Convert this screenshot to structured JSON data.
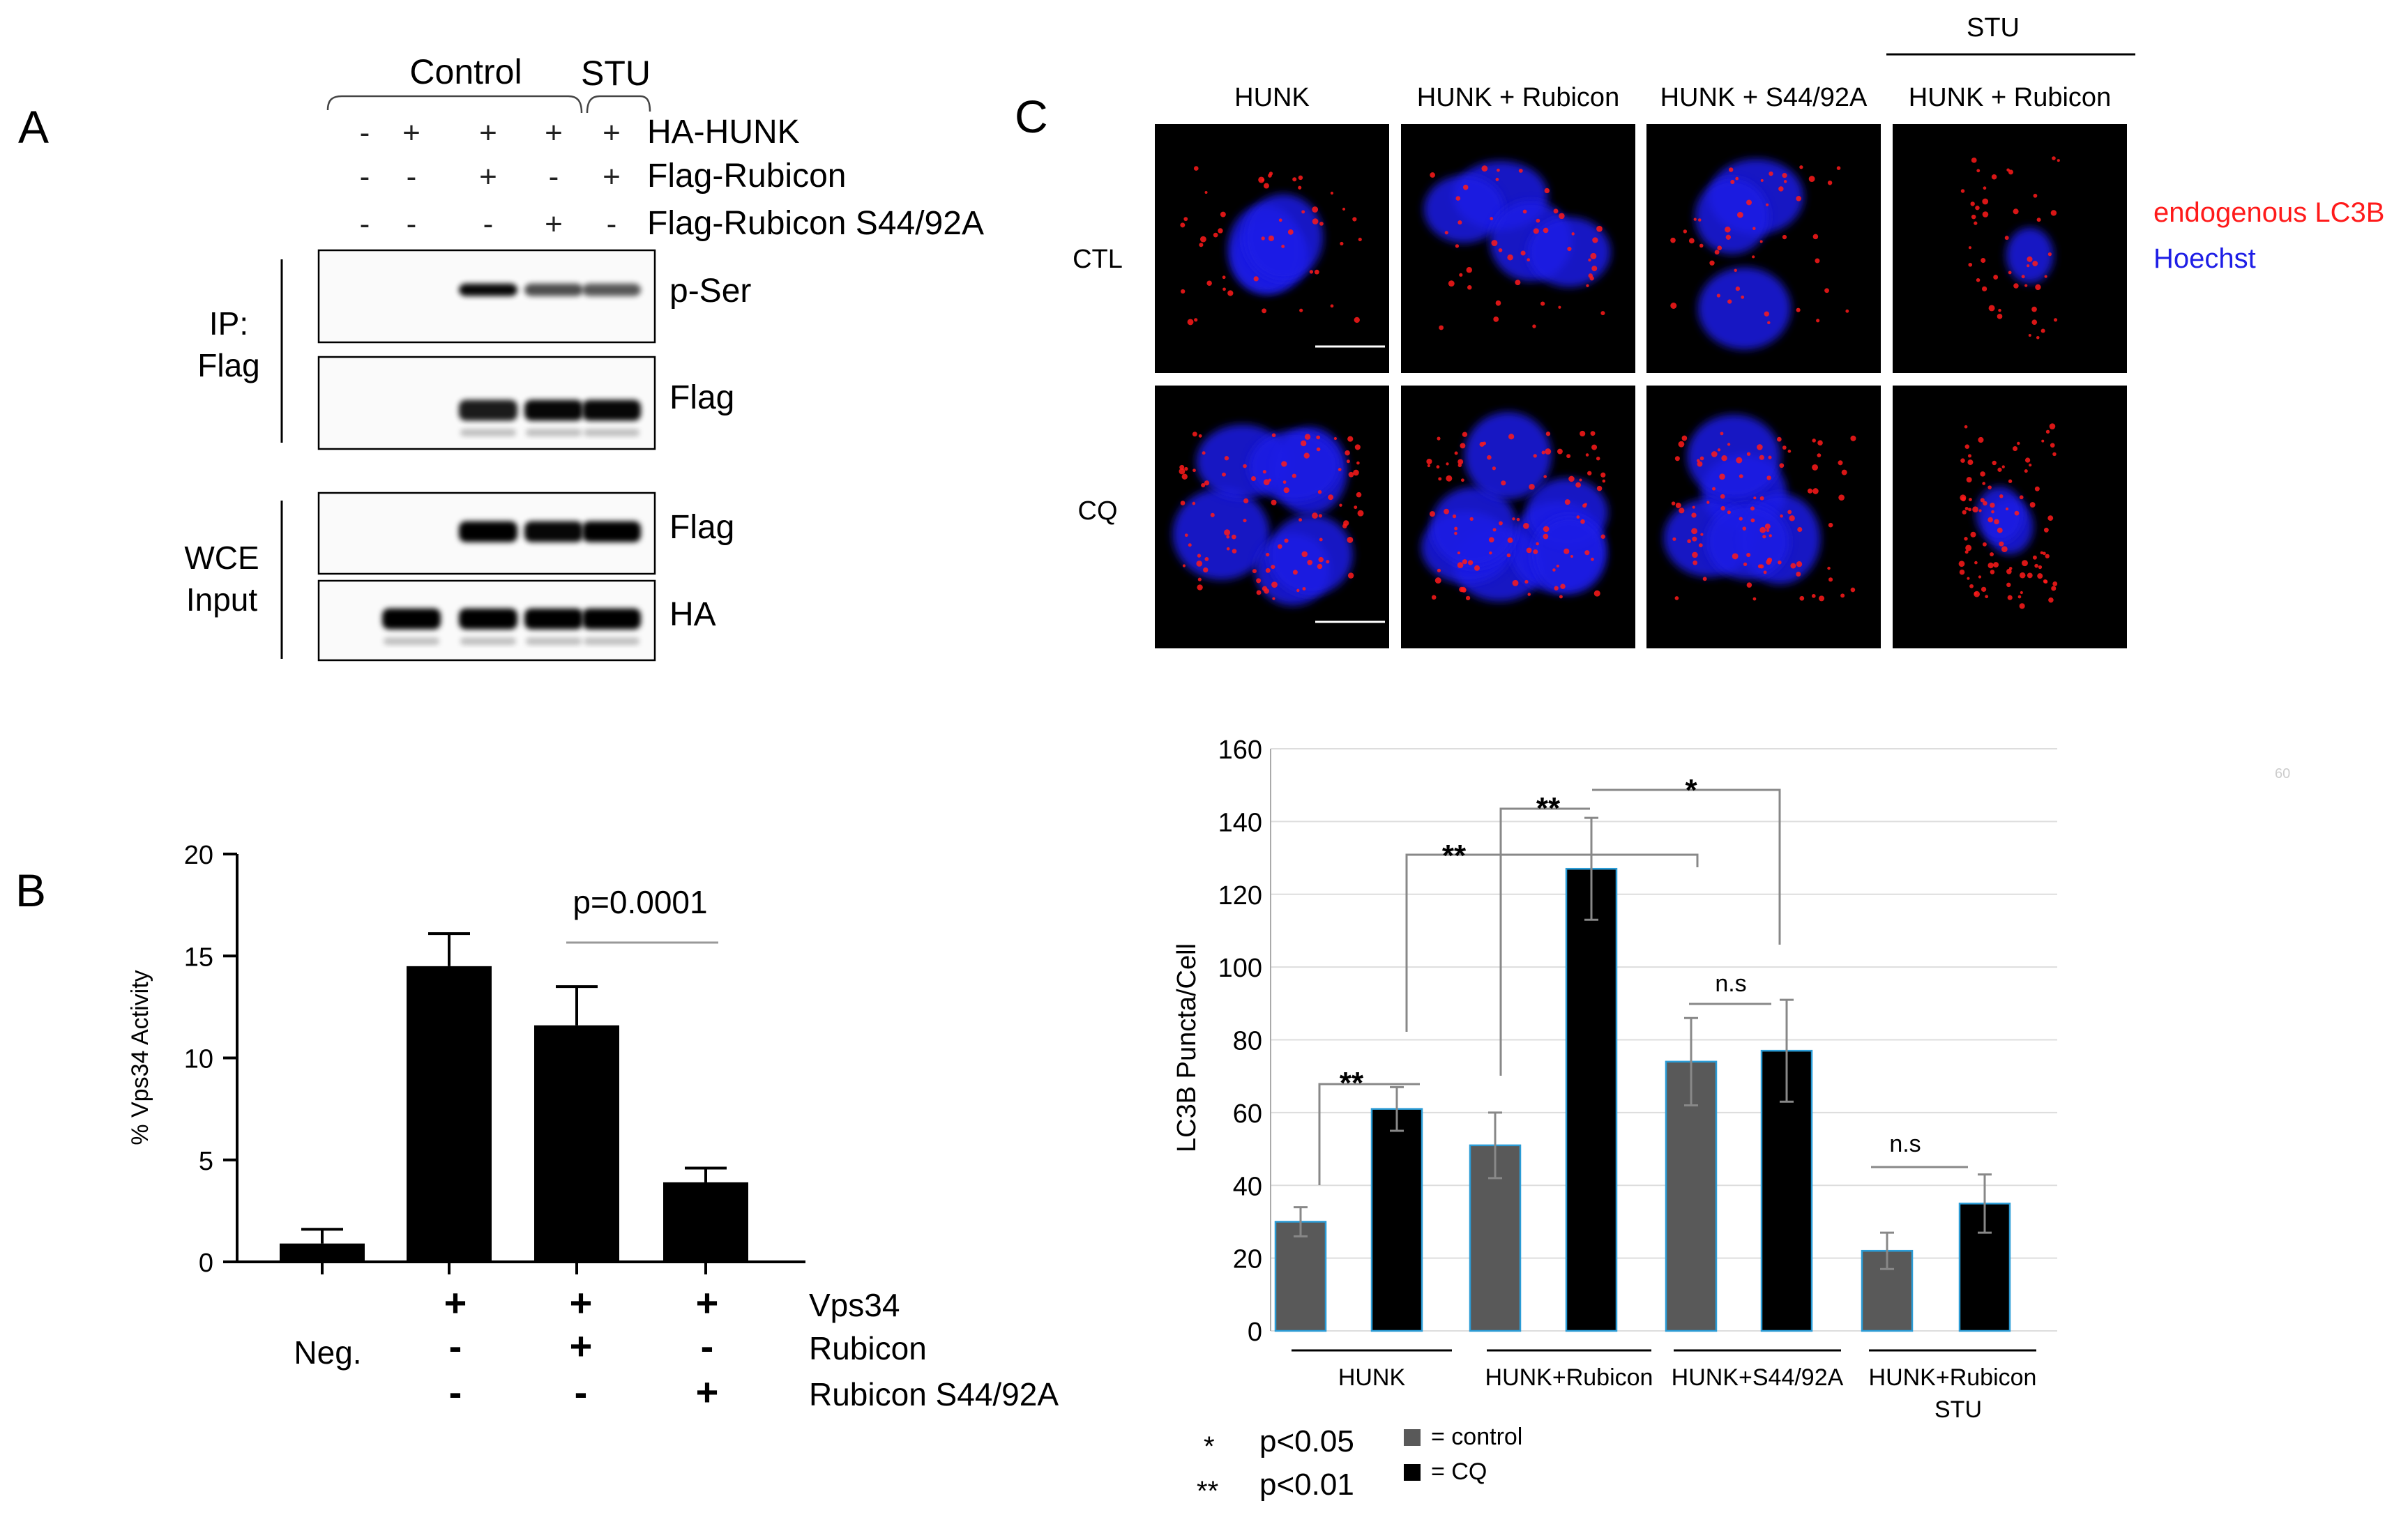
{
  "panelA": {
    "letter": "A",
    "group_labels": [
      "Control",
      "STU"
    ],
    "rows": [
      {
        "label": "HA-HUNK",
        "signs": [
          "-",
          "+",
          "+",
          "+",
          "+"
        ]
      },
      {
        "label": "Flag-Rubicon",
        "signs": [
          "-",
          "-",
          "+",
          "-",
          "+"
        ]
      },
      {
        "label": "Flag-Rubicon S44/92A",
        "signs": [
          "-",
          "-",
          "-",
          "+",
          "-"
        ]
      }
    ],
    "ip_label_line1": "IP:",
    "ip_label_line2": "Flag",
    "wce_label_line1": "WCE",
    "wce_label_line2": "Input",
    "blots": [
      {
        "label": "p-Ser",
        "bands": [
          0,
          0,
          0.9,
          0.55,
          0.5
        ]
      },
      {
        "label": "Flag",
        "bands": [
          0,
          0,
          0.8,
          0.9,
          0.9
        ]
      },
      {
        "label": "Flag",
        "bands": [
          0,
          0,
          1.0,
          0.9,
          0.95
        ]
      },
      {
        "label": "HA",
        "bands": [
          0,
          1.0,
          1.0,
          1.0,
          1.0
        ]
      }
    ]
  },
  "panelB": {
    "letter": "B",
    "annotation": "p=0.0001",
    "chart_data": {
      "type": "bar",
      "ylabel": "% Vps34 Activity",
      "ylim": [
        0,
        20
      ],
      "yticks": [
        "0",
        "5",
        "10",
        "15",
        "20"
      ],
      "values": [
        0.9,
        14.5,
        11.6,
        3.9
      ],
      "errors": [
        0.7,
        1.6,
        1.9,
        0.7
      ],
      "conditions": [
        {
          "label": "Vps34",
          "signs": [
            "",
            "+",
            "+",
            "+"
          ]
        },
        {
          "label": "Rubicon",
          "signs": [
            "Neg.",
            "-",
            "+",
            "-"
          ]
        },
        {
          "label": "Rubicon S44/92A",
          "signs": [
            "",
            "-",
            "-",
            "+"
          ]
        }
      ]
    }
  },
  "panelC": {
    "letter": "C",
    "stu_header": "STU",
    "column_labels": [
      "HUNK",
      "HUNK + Rubicon",
      "HUNK + S44/92A",
      "HUNK + Rubicon"
    ],
    "row_labels": [
      "CTL",
      "CQ"
    ],
    "legend_stain_1": "endogenous LC3B",
    "legend_stain_2": "Hoechst",
    "stain_colors": {
      "lc3b": "#ff1a1a",
      "hoechst": "#1e1ee6"
    },
    "corner_mark": "60",
    "chart_data": {
      "type": "bar",
      "ylabel": "LC3B Puncta/Cell",
      "ylim": [
        0,
        160
      ],
      "yticks": [
        "0",
        "20",
        "40",
        "60",
        "80",
        "100",
        "120",
        "140",
        "160"
      ],
      "groups": [
        "HUNK",
        "HUNK+Rubicon",
        "HUNK+S44/92A",
        "HUNK+Rubicon"
      ],
      "group_sublabels": [
        "",
        "",
        "",
        "STU"
      ],
      "series": [
        {
          "name": "= control",
          "color": "#595959",
          "values": [
            30,
            51,
            74,
            22
          ],
          "errors": [
            4,
            9,
            12,
            5
          ]
        },
        {
          "name": "= CQ",
          "color": "#000000",
          "values": [
            61,
            127,
            77,
            35
          ],
          "errors": [
            6,
            14,
            14,
            8
          ]
        }
      ],
      "significance": [
        "**",
        "**",
        "**",
        "*",
        "n.s",
        "n.s"
      ],
      "key": [
        {
          "mark": "*",
          "text": "p<0.05"
        },
        {
          "mark": "**",
          "text": "p<0.01"
        }
      ]
    }
  }
}
